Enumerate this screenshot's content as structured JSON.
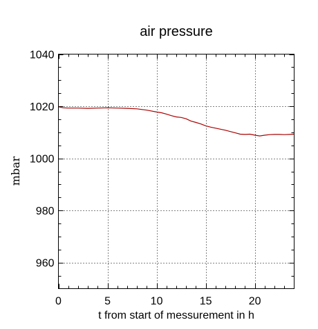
{
  "chart_data": {
    "type": "line",
    "title": "air pressure",
    "xlabel": "t from start of messurement in h",
    "ylabel": "mbar",
    "xlim": [
      0,
      24
    ],
    "ylim": [
      950,
      1040
    ],
    "xticks": [
      0,
      5,
      10,
      15,
      20
    ],
    "xtick_labels": [
      "0",
      "5",
      "10",
      "15",
      "20"
    ],
    "yticks": [
      960,
      980,
      1000,
      1020,
      1040
    ],
    "ytick_labels": [
      "960",
      "980",
      "1000",
      "1020",
      "1040"
    ],
    "grid": true,
    "line_color": "#aa0000",
    "series": [
      {
        "x": [
          0,
          0.5,
          1,
          2,
          3,
          4,
          5,
          6,
          7,
          8,
          9,
          10,
          10.5,
          11,
          11.5,
          12,
          12.5,
          13,
          13.5,
          14,
          14.5,
          15,
          15.5,
          16,
          16.5,
          17,
          17.5,
          18,
          18.5,
          19,
          19.5,
          20,
          20.5,
          21,
          21.5,
          22,
          22.5,
          23,
          23.5,
          24
        ],
        "y": [
          1019.8,
          1019.4,
          1019.3,
          1019.3,
          1019.2,
          1019.3,
          1019.4,
          1019.3,
          1019.2,
          1019.0,
          1018.5,
          1017.8,
          1017.5,
          1017.0,
          1016.4,
          1015.9,
          1015.7,
          1015.2,
          1014.3,
          1013.8,
          1013.2,
          1012.5,
          1012.0,
          1011.6,
          1011.2,
          1010.8,
          1010.3,
          1009.8,
          1009.3,
          1009.2,
          1009.3,
          1008.9,
          1008.6,
          1008.9,
          1009.1,
          1009.2,
          1009.2,
          1009.1,
          1009.2,
          1009.3
        ]
      }
    ]
  }
}
